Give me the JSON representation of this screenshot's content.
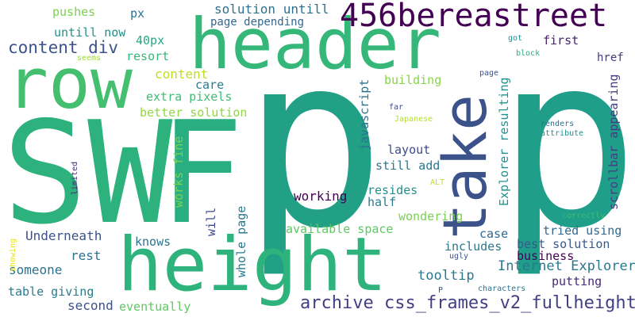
{
  "words": [
    {
      "text": "p",
      "color": "#21a086"
    },
    {
      "text": "p",
      "color": "#1f9e89"
    },
    {
      "text": "SW",
      "color": "#2db27d"
    },
    {
      "text": "F",
      "color": "#28ae80"
    },
    {
      "text": "header",
      "color": "#35b779"
    },
    {
      "text": "row",
      "color": "#44bf70"
    },
    {
      "text": "height",
      "color": "#2eb37c"
    },
    {
      "text": "take",
      "color": "#3b528b"
    },
    {
      "text": "456bereastreet",
      "color": "#440154"
    },
    {
      "text": "archive css_frames_v2_fullheight",
      "color": "#433e85"
    },
    {
      "text": "content div",
      "color": "#3b528b"
    },
    {
      "text": "solution untill",
      "color": "#2c728e"
    },
    {
      "text": "page depending",
      "color": "#31688e"
    },
    {
      "text": "pushes",
      "color": "#7ad151"
    },
    {
      "text": "px",
      "color": "#2c728e"
    },
    {
      "text": "untill now",
      "color": "#21918c"
    },
    {
      "text": "40px",
      "color": "#22a884"
    },
    {
      "text": "resort",
      "color": "#35b779"
    },
    {
      "text": "content",
      "color": "#bddf26"
    },
    {
      "text": "care",
      "color": "#287c8e"
    },
    {
      "text": "extra pixels",
      "color": "#3fbc73"
    },
    {
      "text": "better solution",
      "color": "#90d743"
    },
    {
      "text": "works fine",
      "color": "#7ad151"
    },
    {
      "text": "will",
      "color": "#3e4989"
    },
    {
      "text": "whole page",
      "color": "#2a788e"
    },
    {
      "text": "Underneath",
      "color": "#3b528b"
    },
    {
      "text": "knows",
      "color": "#2c728e"
    },
    {
      "text": "rest",
      "color": "#2c728e"
    },
    {
      "text": "someone",
      "color": "#2c728e"
    },
    {
      "text": "table giving",
      "color": "#287c8e"
    },
    {
      "text": "second",
      "color": "#3b528b"
    },
    {
      "text": "eventually",
      "color": "#5ec962"
    },
    {
      "text": "javascript",
      "color": "#2c728e"
    },
    {
      "text": "building",
      "color": "#86d549"
    },
    {
      "text": "layout",
      "color": "#3e4989"
    },
    {
      "text": "still add",
      "color": "#2a788e"
    },
    {
      "text": "working",
      "color": "#440154"
    },
    {
      "text": "resides",
      "color": "#21918c"
    },
    {
      "text": "half",
      "color": "#287c8e"
    },
    {
      "text": "wondering",
      "color": "#7ad151"
    },
    {
      "text": "available space",
      "color": "#5ec962"
    },
    {
      "text": "case",
      "color": "#31688e"
    },
    {
      "text": "includes",
      "color": "#2a788e"
    },
    {
      "text": "tooltip",
      "color": "#2a788e"
    },
    {
      "text": "Internet Explorer",
      "color": "#2a788e"
    },
    {
      "text": "business",
      "color": "#440154"
    },
    {
      "text": "best solution",
      "color": "#38588c"
    },
    {
      "text": "tried using",
      "color": "#31688e"
    },
    {
      "text": "putting",
      "color": "#482878"
    },
    {
      "text": "first",
      "color": "#481f70"
    },
    {
      "text": "href",
      "color": "#443983"
    },
    {
      "text": "Explorer resulting",
      "color": "#21918c"
    },
    {
      "text": "scrollbar appearing",
      "color": "#433e85"
    },
    {
      "text": "got",
      "color": "#21918c"
    },
    {
      "text": "block",
      "color": "#27ad81"
    },
    {
      "text": "page",
      "color": "#3b528b"
    },
    {
      "text": "far",
      "color": "#3e4989"
    },
    {
      "text": "Japanese",
      "color": "#b5de2b"
    },
    {
      "text": "renders",
      "color": "#2c728e"
    },
    {
      "text": "attribute",
      "color": "#21918c"
    },
    {
      "text": "ALT",
      "color": "#bddf26"
    },
    {
      "text": "correctly",
      "color": "#3fbc73"
    },
    {
      "text": "ugly",
      "color": "#3b528b"
    },
    {
      "text": "characters",
      "color": "#2c728e"
    },
    {
      "text": "P",
      "color": "#3b528b"
    },
    {
      "text": "seems",
      "color": "#a0da39"
    },
    {
      "text": "limited",
      "color": "#482878"
    },
    {
      "text": "showing",
      "color": "#e5e419"
    }
  ]
}
